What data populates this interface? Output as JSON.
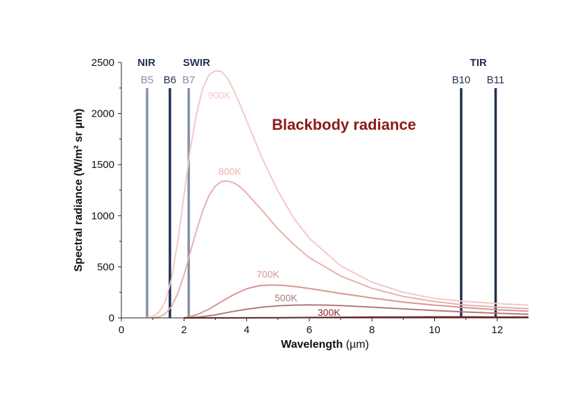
{
  "chart_data": {
    "type": "line",
    "title": "",
    "xlabel": "Wavelength",
    "xlabel_unit": "(µm)",
    "ylabel": "Spectral radiance (W/m² sr µm)",
    "xlim": [
      0,
      13
    ],
    "ylim": [
      0,
      2500
    ],
    "xticks": [
      0,
      2,
      4,
      6,
      8,
      10,
      12
    ],
    "yticks": [
      0,
      500,
      1000,
      1500,
      2000,
      2500
    ],
    "grid": false,
    "annotation": {
      "text": "Blackbody radiance",
      "color": "#8b1a1a"
    },
    "band_groups": [
      {
        "label": "NIR",
        "center": 0.8
      },
      {
        "label": "SWIR",
        "center": 2.4
      },
      {
        "label": "TIR",
        "center": 11.4
      }
    ],
    "bands": [
      {
        "name": "B5",
        "wavelength": 0.82,
        "color": "#8290a8"
      },
      {
        "name": "B6",
        "wavelength": 1.55,
        "color": "#1f3050"
      },
      {
        "name": "B7",
        "wavelength": 2.15,
        "color": "#8290a8"
      },
      {
        "name": "B10",
        "wavelength": 10.85,
        "color": "#1f3050"
      },
      {
        "name": "B11",
        "wavelength": 11.95,
        "color": "#1f3050"
      }
    ],
    "series": [
      {
        "name": "900K",
        "color": "#f2c9c6",
        "x": [
          0.8,
          1.0,
          1.2,
          1.4,
          1.6,
          1.8,
          2.0,
          2.2,
          2.4,
          2.6,
          2.8,
          3.0,
          3.2,
          3.4,
          3.6,
          3.8,
          4.0,
          4.5,
          5.0,
          5.5,
          6.0,
          7.0,
          8.0,
          9.0,
          10.0,
          11.0,
          12.0,
          13.0
        ],
        "y": [
          3,
          15,
          55,
          160,
          380,
          750,
          1200,
          1650,
          2000,
          2250,
          2380,
          2420,
          2410,
          2340,
          2220,
          2080,
          1930,
          1560,
          1240,
          980,
          780,
          510,
          350,
          250,
          190,
          160,
          140,
          125
        ]
      },
      {
        "name": "800K",
        "color": "#e8b0ac",
        "x": [
          1.0,
          1.2,
          1.4,
          1.6,
          1.8,
          2.0,
          2.2,
          2.4,
          2.6,
          2.8,
          3.0,
          3.2,
          3.4,
          3.6,
          3.8,
          4.0,
          4.5,
          5.0,
          5.5,
          6.0,
          7.0,
          8.0,
          9.0,
          10.0,
          11.0,
          12.0,
          13.0
        ],
        "y": [
          0,
          10,
          40,
          110,
          240,
          420,
          640,
          860,
          1050,
          1200,
          1290,
          1335,
          1340,
          1320,
          1280,
          1220,
          1050,
          870,
          720,
          590,
          410,
          290,
          210,
          160,
          125,
          105,
          90
        ]
      },
      {
        "name": "700K",
        "color": "#d99590",
        "x": [
          2.0,
          2.4,
          2.8,
          3.2,
          3.6,
          4.0,
          4.4,
          4.8,
          5.2,
          5.6,
          6.0,
          7.0,
          8.0,
          9.0,
          10.0,
          11.0,
          12.0,
          13.0
        ],
        "y": [
          0,
          30,
          85,
          160,
          230,
          285,
          315,
          322,
          318,
          305,
          288,
          240,
          195,
          155,
          125,
          100,
          80,
          65
        ]
      },
      {
        "name": "500K",
        "color": "#b07a7a",
        "x": [
          2.0,
          2.5,
          3.0,
          3.5,
          4.0,
          4.5,
          5.0,
          5.5,
          6.0,
          6.5,
          7.0,
          8.0,
          9.0,
          10.0,
          11.0,
          12.0,
          13.0
        ],
        "y": [
          0,
          8,
          30,
          60,
          85,
          105,
          118,
          125,
          127,
          126,
          120,
          105,
          88,
          72,
          58,
          46,
          36
        ]
      },
      {
        "name": "300K",
        "color": "#8b2525",
        "x": [
          2.0,
          4.0,
          5.0,
          6.0,
          7.0,
          8.0,
          9.0,
          10.0,
          11.0,
          12.0,
          13.0
        ],
        "y": [
          0,
          1,
          2,
          4,
          6,
          8,
          9,
          10,
          10,
          9,
          9
        ]
      }
    ]
  }
}
